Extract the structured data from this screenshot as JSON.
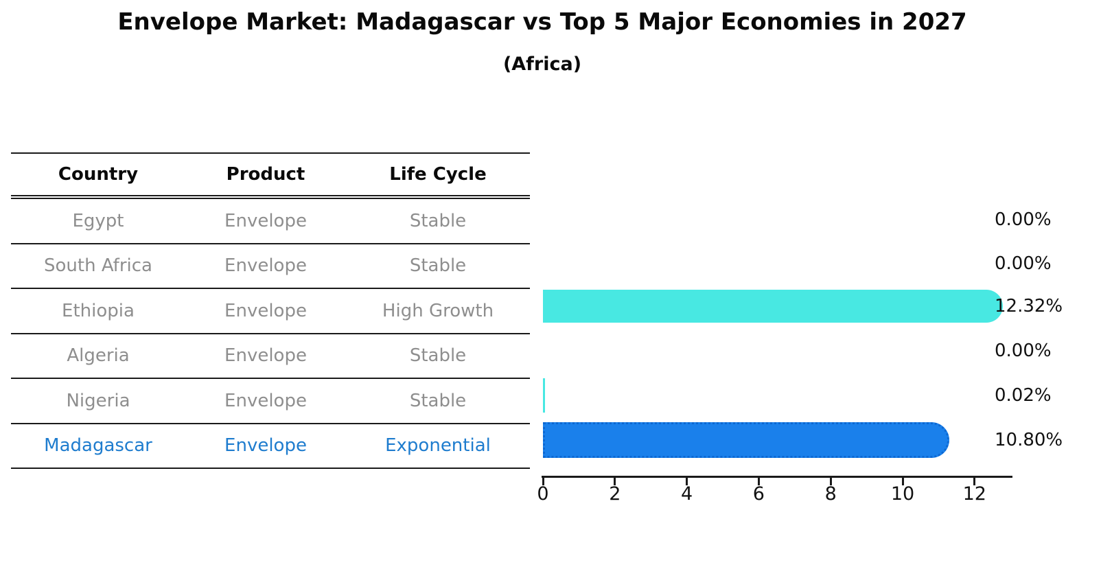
{
  "title": "Envelope Market: Madagascar vs Top 5 Major Economies in 2027",
  "subtitle": "(Africa)",
  "table": {
    "columns": [
      "Country",
      "Product",
      "Life Cycle"
    ],
    "rows": [
      {
        "country": "Egypt",
        "product": "Envelope",
        "life_cycle": "Stable",
        "highlighted": false
      },
      {
        "country": "South Africa",
        "product": "Envelope",
        "life_cycle": "Stable",
        "highlighted": false
      },
      {
        "country": "Ethiopia",
        "product": "Envelope",
        "life_cycle": "High Growth",
        "highlighted": false
      },
      {
        "country": "Algeria",
        "product": "Envelope",
        "life_cycle": "Stable",
        "highlighted": false
      },
      {
        "country": "Nigeria",
        "product": "Envelope",
        "life_cycle": "Stable",
        "highlighted": false
      },
      {
        "country": "Madagascar",
        "product": "Envelope",
        "life_cycle": "Exponential",
        "highlighted": true
      }
    ]
  },
  "chart_data": {
    "type": "bar",
    "orientation": "horizontal",
    "categories": [
      "Egypt",
      "South Africa",
      "Ethiopia",
      "Algeria",
      "Nigeria",
      "Madagascar"
    ],
    "values": [
      0.0,
      0.0,
      12.32,
      0.0,
      0.02,
      10.8
    ],
    "value_labels": [
      "0.00%",
      "0.00%",
      "12.32%",
      "0.00%",
      "0.02%",
      "10.80%"
    ],
    "highlight_index": 5,
    "xticks": [
      0,
      2,
      4,
      6,
      8,
      10,
      12
    ],
    "xlim": [
      0,
      13.1
    ],
    "grid": false,
    "title": "Envelope Market: Madagascar vs Top 5 Major Economies in 2027",
    "subtitle": "(Africa)",
    "xlabel": "",
    "ylabel": ""
  },
  "colors": {
    "bar_default": "#48e8e2",
    "bar_highlight": "#1a80eb",
    "bar_highlight_edge": "#0d68d2",
    "highlight_text": "#1e7cce",
    "table_text": "#8e8e8e",
    "text": "#111111",
    "background": "#ffffff"
  }
}
